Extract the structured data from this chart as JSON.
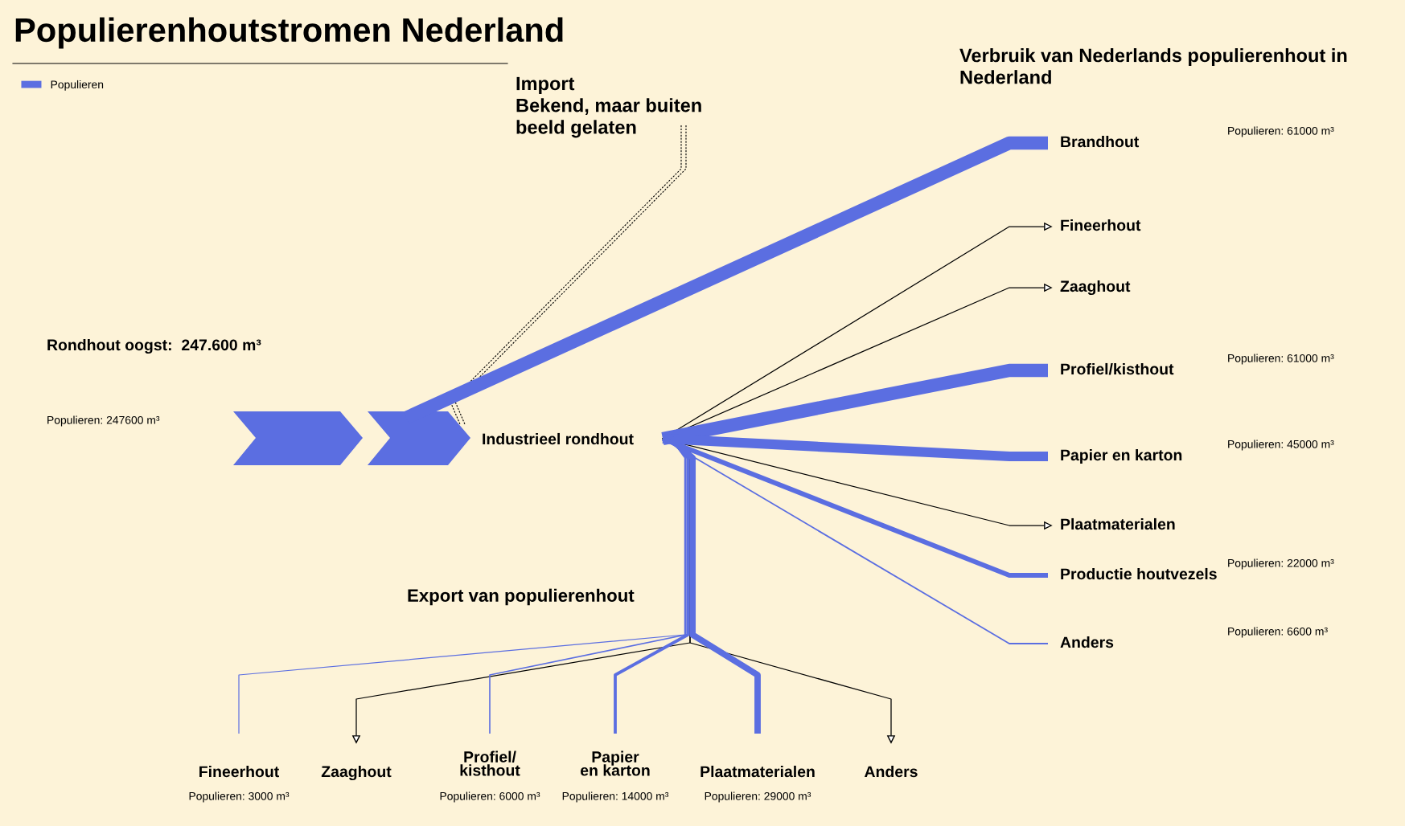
{
  "chart_data": {
    "type": "other",
    "title": "Populierenhoutstromen Nederland",
    "categories": [
      "Brandhout",
      "Fineerhout",
      "Zaaghout",
      "Profiel/kisthout",
      "Papier en karton",
      "Plaatmaterialen",
      "Productie houtvezels",
      "Anders",
      "Fineerhout",
      "Zaaghout",
      "Profiel/\nkisthout",
      "Papier\nen karton",
      "Plaatmaterialen",
      "Anders"
    ],
    "series": [
      {
        "name": "Populieren",
        "color": "#5b6ee1",
        "values": [
          61000,
          null,
          null,
          61000,
          45000,
          null,
          22000,
          6600,
          3000,
          null,
          6000,
          14000,
          29000,
          null
        ],
        "value_labels": [
          "Populieren: 61000 m³",
          null,
          null,
          "Populieren: 61000 m³",
          "Populieren: 45000 m³",
          null,
          "Populieren: 22000 m³",
          "Populieren: 6600 m³",
          "Populieren: 3000 m³",
          null,
          "Populieren: 6000 m³",
          "Populieren: 14000 m³",
          "Populieren: 29000 m³",
          null
        ]
      }
    ],
    "annotations": [
      "Import\nBekend, maar buiten\nbeeld gelaten",
      "Verbruik van Nederlands populierenhout in\nNederland",
      "Rondhout oogst:  247.600 m³",
      "Populieren: 247600 m³",
      "Industrieel rondhout",
      "Export van populierenhout"
    ],
    "legend": "top left"
  }
}
